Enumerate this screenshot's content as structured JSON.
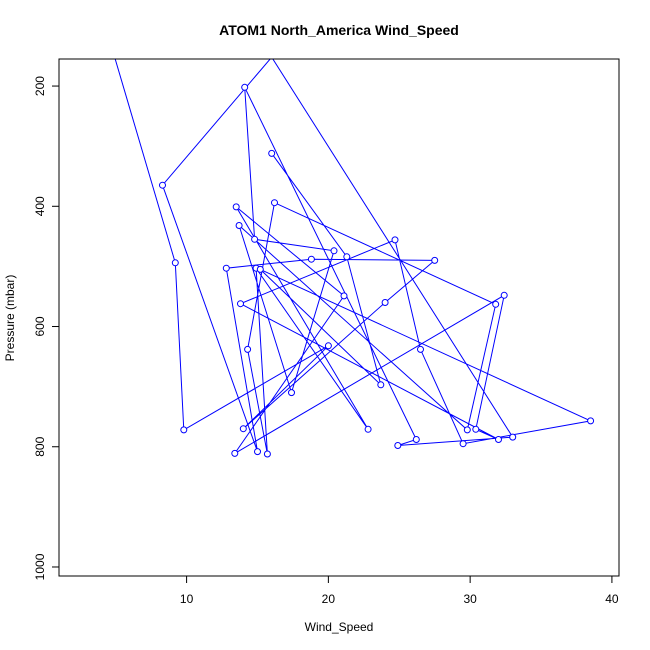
{
  "chart_data": {
    "type": "line",
    "title": "ATOM1 North_America Wind_Speed",
    "xlabel": "Wind_Speed",
    "ylabel": "Pressure (mbar)",
    "xlim": [
      1,
      40.5
    ],
    "ylim": [
      1015,
      155
    ],
    "y_reversed": true,
    "xticks": [
      10,
      20,
      30,
      40
    ],
    "yticks": [
      200,
      400,
      600,
      800,
      1000
    ],
    "grid": false,
    "legend": "none",
    "series_color": "#0000ff",
    "x": [
      4.9,
      9.2,
      9.8,
      20.0,
      14.0,
      24.0,
      27.5,
      18.8,
      12.8,
      15.0,
      8.3,
      16.0,
      33.0,
      24.9,
      26.2,
      14.1,
      14.8,
      20.4,
      17.4,
      13.7,
      29.8,
      31.8,
      16.2,
      14.3,
      15.7,
      14.9,
      22.8,
      13.5,
      21.1,
      13.4,
      32.4,
      30.4,
      32.0,
      13.8,
      24.7,
      26.5,
      29.5,
      38.5,
      15.2,
      23.7,
      21.3,
      16.0
    ],
    "y": [
      150,
      494,
      772,
      632,
      770,
      560,
      490,
      488,
      503,
      808,
      365,
      152,
      784,
      798,
      788,
      202,
      455,
      474,
      710,
      432,
      772,
      563,
      394,
      638,
      812,
      503,
      771,
      401,
      549,
      811,
      548,
      771,
      788,
      562,
      456,
      638,
      795,
      757,
      505,
      697,
      484,
      312
    ]
  }
}
